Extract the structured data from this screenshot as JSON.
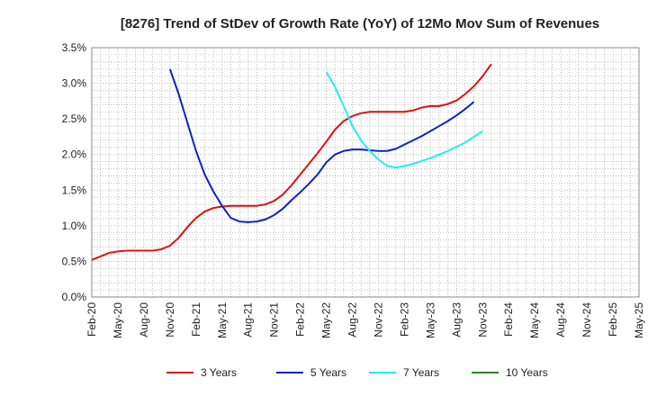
{
  "chart_data": {
    "type": "line",
    "title": "[8276]  Trend of StDev of Growth Rate (YoY) of 12Mo Mov Sum of Revenues",
    "xlabel": "",
    "ylabel": "",
    "ylim": [
      0,
      3.5
    ],
    "y_ticks": [
      "0.0%",
      "0.5%",
      "1.0%",
      "1.5%",
      "2.0%",
      "2.5%",
      "3.0%",
      "3.5%"
    ],
    "x_ticks": [
      "Feb-20",
      "May-20",
      "Aug-20",
      "Nov-20",
      "Feb-21",
      "May-21",
      "Aug-21",
      "Nov-21",
      "Feb-22",
      "May-22",
      "Aug-22",
      "Nov-22",
      "Feb-23",
      "May-23",
      "Aug-23",
      "Nov-23",
      "Feb-24",
      "May-24",
      "Aug-24",
      "Nov-24",
      "Feb-25",
      "May-25"
    ],
    "grid": true,
    "legend_position": "bottom",
    "series": [
      {
        "name": "3 Years",
        "color": "#dd1111",
        "points": [
          [
            0,
            0.52
          ],
          [
            1,
            0.57
          ],
          [
            2,
            0.62
          ],
          [
            3,
            0.64
          ],
          [
            4,
            0.65
          ],
          [
            5,
            0.65
          ],
          [
            6,
            0.65
          ],
          [
            7,
            0.65
          ],
          [
            8,
            0.67
          ],
          [
            9,
            0.72
          ],
          [
            10,
            0.83
          ],
          [
            11,
            0.98
          ],
          [
            12,
            1.11
          ],
          [
            13,
            1.2
          ],
          [
            14,
            1.25
          ],
          [
            15,
            1.27
          ],
          [
            16,
            1.28
          ],
          [
            17,
            1.28
          ],
          [
            18,
            1.28
          ],
          [
            19,
            1.28
          ],
          [
            20,
            1.3
          ],
          [
            21,
            1.35
          ],
          [
            22,
            1.44
          ],
          [
            23,
            1.57
          ],
          [
            24,
            1.72
          ],
          [
            25,
            1.87
          ],
          [
            26,
            2.02
          ],
          [
            27,
            2.18
          ],
          [
            28,
            2.35
          ],
          [
            29,
            2.47
          ],
          [
            30,
            2.54
          ],
          [
            31,
            2.58
          ],
          [
            32,
            2.6
          ],
          [
            33,
            2.6
          ],
          [
            34,
            2.6
          ],
          [
            35,
            2.6
          ],
          [
            36,
            2.6
          ],
          [
            37,
            2.62
          ],
          [
            38,
            2.66
          ],
          [
            39,
            2.68
          ],
          [
            40,
            2.68
          ],
          [
            41,
            2.71
          ],
          [
            42,
            2.76
          ],
          [
            43,
            2.85
          ],
          [
            44,
            2.96
          ],
          [
            45,
            3.1
          ],
          [
            46,
            3.27
          ]
        ]
      },
      {
        "name": "5 Years",
        "color": "#1122bb",
        "points": [
          [
            9,
            3.2
          ],
          [
            10,
            2.85
          ],
          [
            11,
            2.45
          ],
          [
            12,
            2.05
          ],
          [
            13,
            1.72
          ],
          [
            14,
            1.48
          ],
          [
            15,
            1.28
          ],
          [
            16,
            1.11
          ],
          [
            17,
            1.06
          ],
          [
            18,
            1.05
          ],
          [
            19,
            1.06
          ],
          [
            20,
            1.09
          ],
          [
            21,
            1.15
          ],
          [
            22,
            1.24
          ],
          [
            23,
            1.36
          ],
          [
            24,
            1.47
          ],
          [
            25,
            1.59
          ],
          [
            26,
            1.72
          ],
          [
            27,
            1.89
          ],
          [
            28,
            2.0
          ],
          [
            29,
            2.05
          ],
          [
            30,
            2.07
          ],
          [
            31,
            2.07
          ],
          [
            32,
            2.06
          ],
          [
            33,
            2.05
          ],
          [
            34,
            2.05
          ],
          [
            35,
            2.08
          ],
          [
            36,
            2.14
          ],
          [
            37,
            2.2
          ],
          [
            38,
            2.26
          ],
          [
            39,
            2.33
          ],
          [
            40,
            2.4
          ],
          [
            41,
            2.47
          ],
          [
            42,
            2.55
          ],
          [
            43,
            2.64
          ],
          [
            44,
            2.74
          ]
        ]
      },
      {
        "name": "7 Years",
        "color": "#22eeee",
        "points": [
          [
            27,
            3.16
          ],
          [
            28,
            2.95
          ],
          [
            29,
            2.68
          ],
          [
            30,
            2.4
          ],
          [
            31,
            2.2
          ],
          [
            32,
            2.05
          ],
          [
            33,
            1.93
          ],
          [
            34,
            1.84
          ],
          [
            35,
            1.82
          ],
          [
            36,
            1.84
          ],
          [
            37,
            1.87
          ],
          [
            38,
            1.91
          ],
          [
            39,
            1.95
          ],
          [
            40,
            2.0
          ],
          [
            41,
            2.05
          ],
          [
            42,
            2.11
          ],
          [
            43,
            2.17
          ],
          [
            44,
            2.25
          ],
          [
            45,
            2.33
          ]
        ]
      },
      {
        "name": "10 Years",
        "color": "#228822",
        "points": []
      }
    ]
  }
}
